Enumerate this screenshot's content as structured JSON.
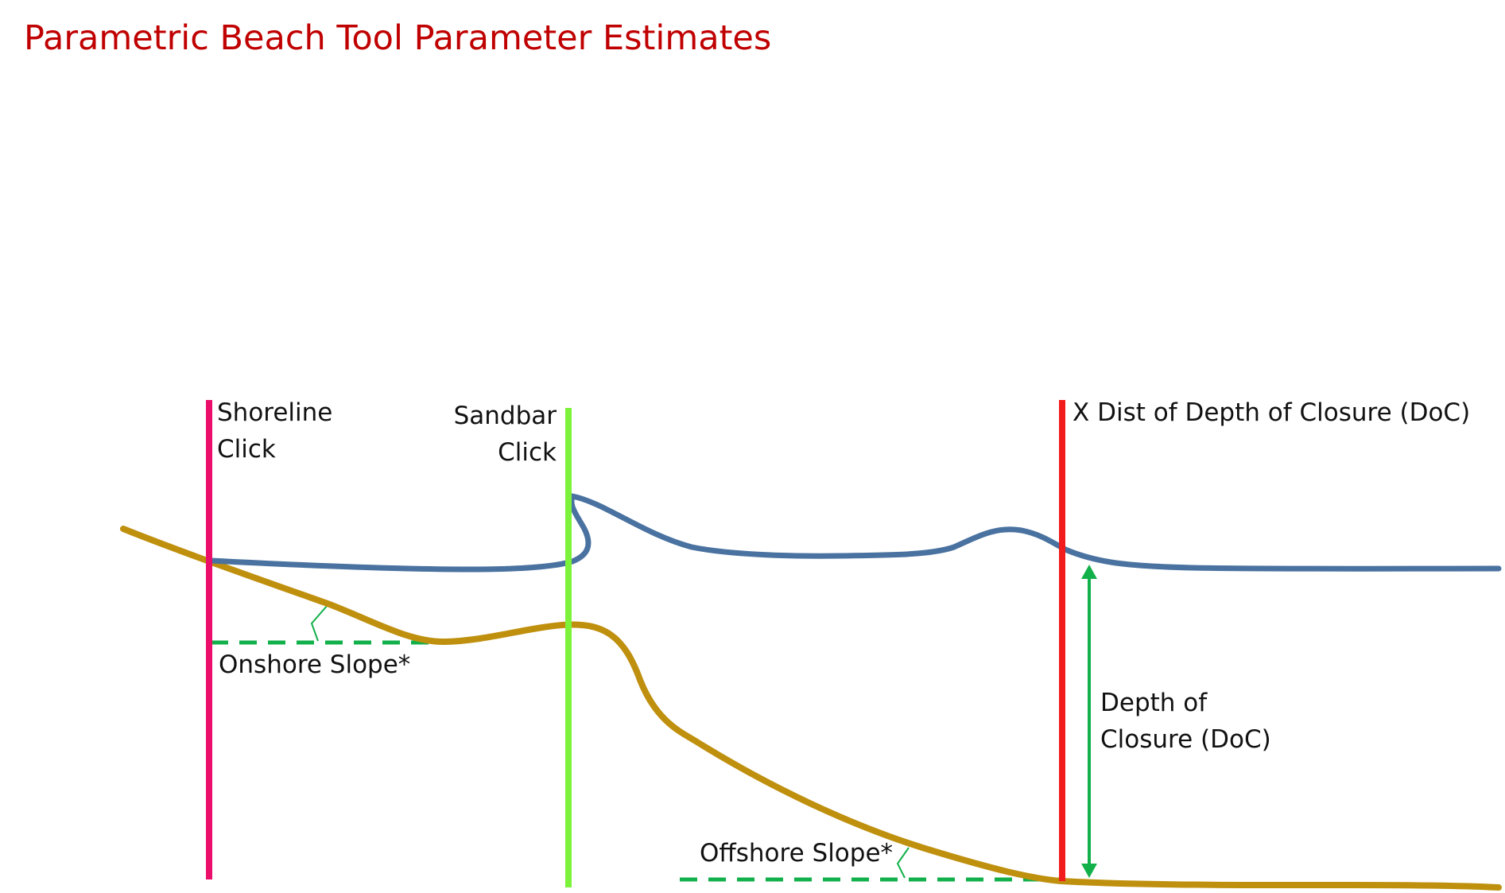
{
  "title": "Parametric Beach Tool Parameter Estimates",
  "labels": {
    "shoreline_line1": "Shoreline",
    "shoreline_line2": "Click",
    "sandbar_line1": "Sandbar",
    "sandbar_line2": "Click",
    "doc_x_dist": "X Dist of Depth of Closure (DoC)",
    "doc_line1": "Depth of",
    "doc_line2": "Closure (DoC)",
    "onshore_slope": "Onshore Slope*",
    "offshore_slope": "Offshore Slope*"
  },
  "colors": {
    "title": "#c00000",
    "shoreline_marker": "#ec0e6b",
    "sandbar_marker": "#7cf23a",
    "doc_marker": "#f21c1c",
    "water_profile": "#4a72a0",
    "seabed_profile": "#bf900e",
    "slope_annotation": "#12b04a"
  }
}
